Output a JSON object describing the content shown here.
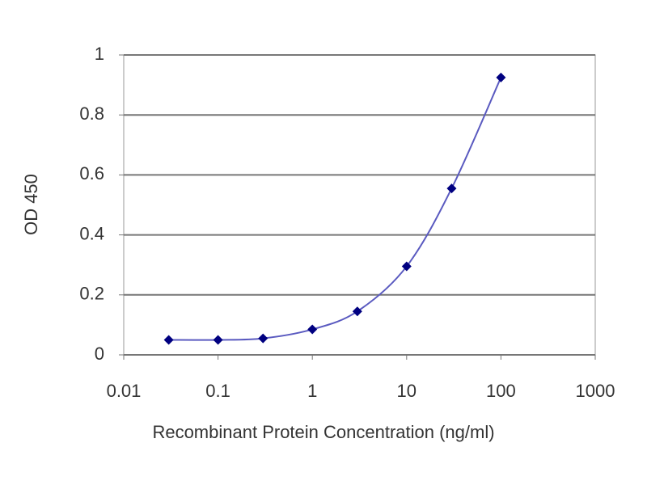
{
  "chart_data": {
    "type": "line",
    "x_label": "Recombinant Protein Concentration (ng/ml)",
    "y_label": "OD 450",
    "x": [
      0.03,
      0.1,
      0.3,
      1,
      3,
      10,
      30,
      100
    ],
    "series": [
      {
        "color": "#000080",
        "line_color": "#5a5ac0",
        "values": [
          0.05,
          0.05,
          0.055,
          0.085,
          0.145,
          0.295,
          0.555,
          0.925
        ]
      }
    ],
    "x_scale": "log",
    "xlim": [
      0.01,
      1000
    ],
    "xticks": [
      0.01,
      0.1,
      1,
      10,
      100,
      1000
    ],
    "ylim": [
      0,
      1
    ],
    "yticks": [
      0,
      0.2,
      0.4,
      0.6,
      0.8,
      1
    ],
    "grid": true
  }
}
